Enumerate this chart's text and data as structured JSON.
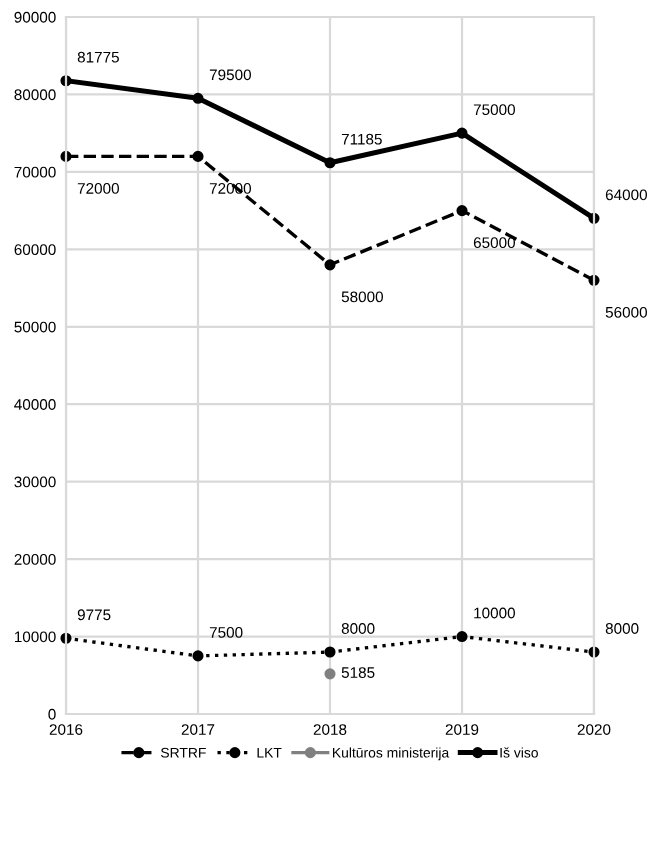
{
  "chart_data": {
    "type": "line",
    "x": [
      2016,
      2017,
      2018,
      2019,
      2020
    ],
    "series": [
      {
        "name": "SRTRF",
        "color": "#000000",
        "line_style": "dashed",
        "values": [
          72000,
          72000,
          58000,
          65000,
          56000
        ]
      },
      {
        "name": "LKT",
        "color": "#000000",
        "line_style": "dotted",
        "values": [
          9775,
          7500,
          8000,
          10000,
          8000
        ]
      },
      {
        "name": "Kultūros ministerija",
        "color": "#808080",
        "line_style": "solid",
        "values": [
          null,
          null,
          5185,
          null,
          null
        ]
      },
      {
        "name": "Iš viso",
        "color": "#000000",
        "line_style": "solid",
        "values": [
          81775,
          79500,
          71185,
          75000,
          64000
        ]
      }
    ],
    "xlim": [
      2016,
      2020
    ],
    "xticks": [
      2016,
      2017,
      2018,
      2019,
      2020
    ],
    "ylim": [
      0,
      90000
    ],
    "yticks": [
      0,
      10000,
      20000,
      30000,
      40000,
      50000,
      60000,
      70000,
      80000,
      90000
    ],
    "grid": true,
    "legend": "bottom",
    "marker": "circle",
    "data_labels": true
  }
}
